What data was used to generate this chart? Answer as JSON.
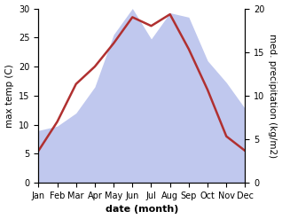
{
  "months": [
    "Jan",
    "Feb",
    "Mar",
    "Apr",
    "May",
    "Jun",
    "Jul",
    "Aug",
    "Sep",
    "Oct",
    "Nov",
    "Dec"
  ],
  "temp": [
    5.5,
    10.5,
    17.0,
    20.0,
    24.0,
    28.5,
    27.0,
    29.0,
    23.0,
    16.0,
    8.0,
    5.5
  ],
  "precip": [
    6.0,
    6.5,
    8.0,
    11.0,
    17.0,
    20.0,
    16.5,
    19.5,
    19.0,
    14.0,
    11.5,
    8.5
  ],
  "temp_color": "#b03030",
  "precip_color_fill": "#c0c8ee",
  "temp_ylim": [
    0,
    30
  ],
  "precip_ylim": [
    0,
    20
  ],
  "xlabel": "date (month)",
  "ylabel_left": "max temp (C)",
  "ylabel_right": "med. precipitation (kg/m2)",
  "temp_linewidth": 1.8,
  "xlabel_fontsize": 8,
  "ylabel_fontsize": 7.5,
  "tick_fontsize": 7
}
